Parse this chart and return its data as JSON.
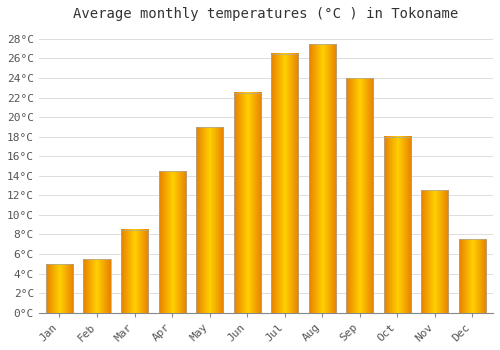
{
  "title": "Average monthly temperatures (°C ) in Tokoname",
  "months": [
    "Jan",
    "Feb",
    "Mar",
    "Apr",
    "May",
    "Jun",
    "Jul",
    "Aug",
    "Sep",
    "Oct",
    "Nov",
    "Dec"
  ],
  "values": [
    5.0,
    5.5,
    8.5,
    14.5,
    19.0,
    22.5,
    26.5,
    27.5,
    24.0,
    18.0,
    12.5,
    7.5
  ],
  "bar_color_center": "#FFD000",
  "bar_color_edge": "#E88000",
  "bar_border_color": "#AAAAAA",
  "background_color": "#FFFFFF",
  "plot_bg_color": "#FFFFFF",
  "grid_color": "#DDDDDD",
  "ylim": [
    0,
    29
  ],
  "ytick_values": [
    0,
    2,
    4,
    6,
    8,
    10,
    12,
    14,
    16,
    18,
    20,
    22,
    24,
    26,
    28
  ],
  "title_fontsize": 10,
  "tick_fontsize": 8,
  "font_family": "monospace",
  "bar_width": 0.72
}
